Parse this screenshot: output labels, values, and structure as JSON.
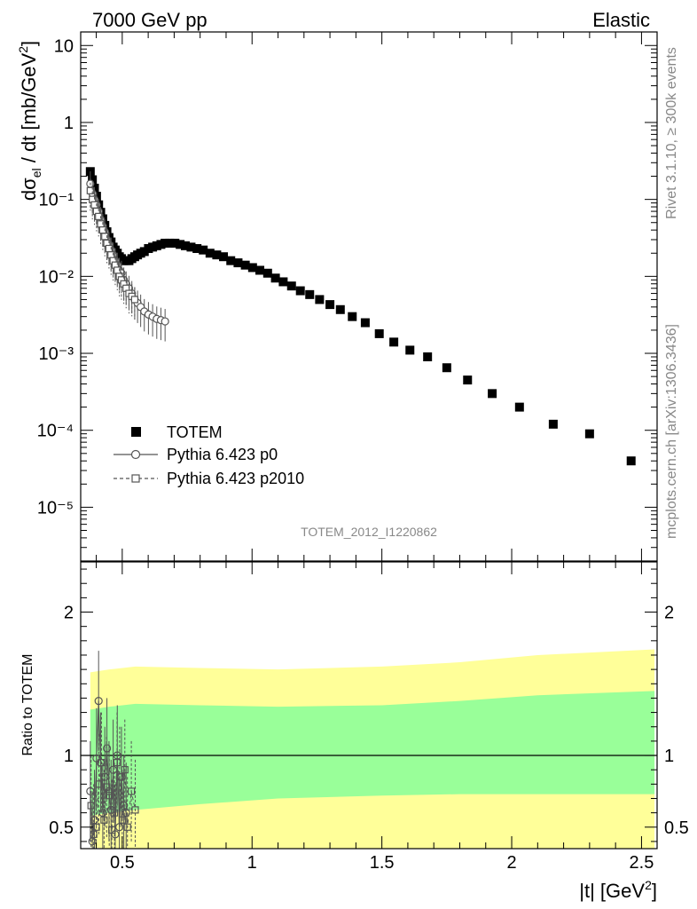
{
  "header": {
    "left": "7000 GeV pp",
    "right": "Elastic"
  },
  "side": {
    "rivet": "Rivet 3.1.10, ≥ 300k events",
    "mcplots": "mcplots.cern.ch [arXiv:1306.3436]"
  },
  "analysis_label": "TOTEM_2012_I1220862",
  "colors": {
    "data": "#000000",
    "mc": "#555555",
    "band_outer": "#ffff99",
    "band_inner": "#99ff99"
  },
  "chart_data": [
    {
      "type": "scatter",
      "panel": "main",
      "ylabel": "dσel / dt [mb/GeV2]",
      "ylabel_parts": {
        "d": "dσ",
        "sub": "el",
        "mid": " / dt [mb/GeV",
        "sup": "2",
        "end": "]"
      },
      "yscale": "log",
      "xlim": [
        0.34,
        2.56
      ],
      "ylim": [
        2e-06,
        15
      ],
      "y_tick_labels": [
        "10⁻⁵",
        "10⁻⁴",
        "10⁻³",
        "10⁻²",
        "10⁻¹",
        "1",
        "10"
      ],
      "legend": [
        "TOTEM",
        "Pythia 6.423 p0",
        "Pythia 6.423 p2010"
      ],
      "legend_position": "lower-left",
      "series": [
        {
          "name": "TOTEM",
          "marker": "filled-square",
          "x": [
            0.377,
            0.385,
            0.393,
            0.401,
            0.409,
            0.417,
            0.425,
            0.433,
            0.441,
            0.449,
            0.457,
            0.465,
            0.473,
            0.481,
            0.489,
            0.497,
            0.506,
            0.515,
            0.526,
            0.537,
            0.548,
            0.559,
            0.571,
            0.585,
            0.601,
            0.617,
            0.633,
            0.649,
            0.665,
            0.683,
            0.703,
            0.723,
            0.743,
            0.765,
            0.788,
            0.812,
            0.838,
            0.864,
            0.89,
            0.918,
            0.946,
            0.974,
            1.002,
            1.03,
            1.06,
            1.09,
            1.12,
            1.152,
            1.186,
            1.222,
            1.26,
            1.3,
            1.34,
            1.386,
            1.436,
            1.49,
            1.546,
            1.608,
            1.676,
            1.75,
            1.83,
            1.925,
            2.03,
            2.16,
            2.3,
            2.46
          ],
          "y": [
            0.23,
            0.18,
            0.14,
            0.11,
            0.085,
            0.068,
            0.056,
            0.046,
            0.038,
            0.032,
            0.028,
            0.024,
            0.022,
            0.02,
            0.018,
            0.017,
            0.016,
            0.016,
            0.016,
            0.017,
            0.018,
            0.019,
            0.02,
            0.021,
            0.023,
            0.024,
            0.025,
            0.026,
            0.027,
            0.027,
            0.027,
            0.026,
            0.025,
            0.024,
            0.023,
            0.022,
            0.02,
            0.019,
            0.018,
            0.016,
            0.015,
            0.014,
            0.013,
            0.012,
            0.011,
            0.0095,
            0.0085,
            0.0075,
            0.0065,
            0.0058,
            0.005,
            0.0043,
            0.0037,
            0.003,
            0.0025,
            0.0018,
            0.0014,
            0.0011,
            0.0009,
            0.00065,
            0.00045,
            0.0003,
            0.0002,
            0.00012,
            9e-05,
            4e-05
          ]
        },
        {
          "name": "Pythia 6.423 p0",
          "marker": "open-circle",
          "x": [
            0.377,
            0.385,
            0.393,
            0.401,
            0.409,
            0.417,
            0.425,
            0.433,
            0.441,
            0.449,
            0.457,
            0.465,
            0.473,
            0.481,
            0.489,
            0.497,
            0.506,
            0.515,
            0.526,
            0.537,
            0.548,
            0.559,
            0.571,
            0.585,
            0.601,
            0.617,
            0.633,
            0.649,
            0.665
          ],
          "y": [
            0.16,
            0.12,
            0.1,
            0.085,
            0.07,
            0.055,
            0.045,
            0.038,
            0.03,
            0.026,
            0.022,
            0.019,
            0.016,
            0.014,
            0.012,
            0.011,
            0.009,
            0.008,
            0.007,
            0.006,
            0.005,
            0.0045,
            0.004,
            0.0035,
            0.0032,
            0.003,
            0.0028,
            0.0027,
            0.0026
          ]
        },
        {
          "name": "Pythia 6.423 p2010",
          "marker": "open-square",
          "x": [
            0.377,
            0.385,
            0.393,
            0.401,
            0.409,
            0.417,
            0.425,
            0.433,
            0.441,
            0.449,
            0.457,
            0.465,
            0.473,
            0.481,
            0.489,
            0.497,
            0.506,
            0.515,
            0.526,
            0.537,
            0.548
          ],
          "y": [
            0.13,
            0.1,
            0.085,
            0.07,
            0.06,
            0.048,
            0.04,
            0.033,
            0.027,
            0.023,
            0.019,
            0.016,
            0.014,
            0.012,
            0.01,
            0.009,
            0.008,
            0.007,
            0.006,
            0.0055,
            0.005
          ]
        }
      ]
    },
    {
      "type": "scatter",
      "panel": "ratio",
      "ylabel": "Ratio to TOTEM",
      "xlabel": "|t| [GeV2]",
      "xlabel_parts": {
        "main": "|t| [GeV",
        "sup": "2",
        "end": "]"
      },
      "xlim": [
        0.34,
        2.56
      ],
      "ylim": [
        0.35,
        2.35
      ],
      "x_tick_labels": [
        "0.5",
        "1",
        "1.5",
        "2",
        "2.5"
      ],
      "y_tick_labels": [
        "0.5",
        "1",
        "2"
      ],
      "reference_line": 1,
      "band_outer": {
        "x": [
          0.377,
          0.45,
          0.55,
          0.8,
          1.1,
          1.5,
          1.8,
          2.1,
          2.55
        ],
        "upper": [
          1.58,
          1.6,
          1.62,
          1.61,
          1.6,
          1.62,
          1.65,
          1.7,
          1.74
        ],
        "lower": [
          0.36,
          0.35,
          0.35,
          0.35,
          0.35,
          0.35,
          0.35,
          0.35,
          0.35
        ]
      },
      "band_inner": {
        "x": [
          0.377,
          0.45,
          0.55,
          0.8,
          1.1,
          1.5,
          1.8,
          2.1,
          2.55
        ],
        "upper": [
          1.32,
          1.34,
          1.36,
          1.35,
          1.34,
          1.35,
          1.38,
          1.42,
          1.45
        ],
        "lower": [
          0.58,
          0.6,
          0.62,
          0.66,
          0.7,
          0.72,
          0.73,
          0.73,
          0.73
        ]
      },
      "series": [
        {
          "name": "Pythia 6.423 p0",
          "x": [
            0.377,
            0.385,
            0.393,
            0.401,
            0.409,
            0.417,
            0.425,
            0.433,
            0.441,
            0.449,
            0.457,
            0.465,
            0.473,
            0.481,
            0.489,
            0.497,
            0.506,
            0.515
          ],
          "y": [
            0.75,
            0.4,
            0.55,
            0.98,
            1.38,
            0.95,
            0.6,
            0.85,
            1.05,
            0.75,
            0.62,
            0.9,
            0.45,
            1.0,
            0.5,
            0.85,
            0.65,
            0.6
          ]
        },
        {
          "name": "Pythia 6.423 p2010",
          "x": [
            0.38,
            0.39,
            0.4,
            0.41,
            0.42,
            0.43,
            0.44,
            0.45,
            0.46,
            0.47,
            0.48,
            0.49,
            0.5,
            0.51,
            0.52,
            0.535,
            0.55
          ],
          "y": [
            0.65,
            0.45,
            0.5,
            0.8,
            0.95,
            0.55,
            0.78,
            0.72,
            0.48,
            0.6,
            0.95,
            0.85,
            0.55,
            0.9,
            0.5,
            0.75,
            0.62
          ]
        }
      ]
    }
  ]
}
